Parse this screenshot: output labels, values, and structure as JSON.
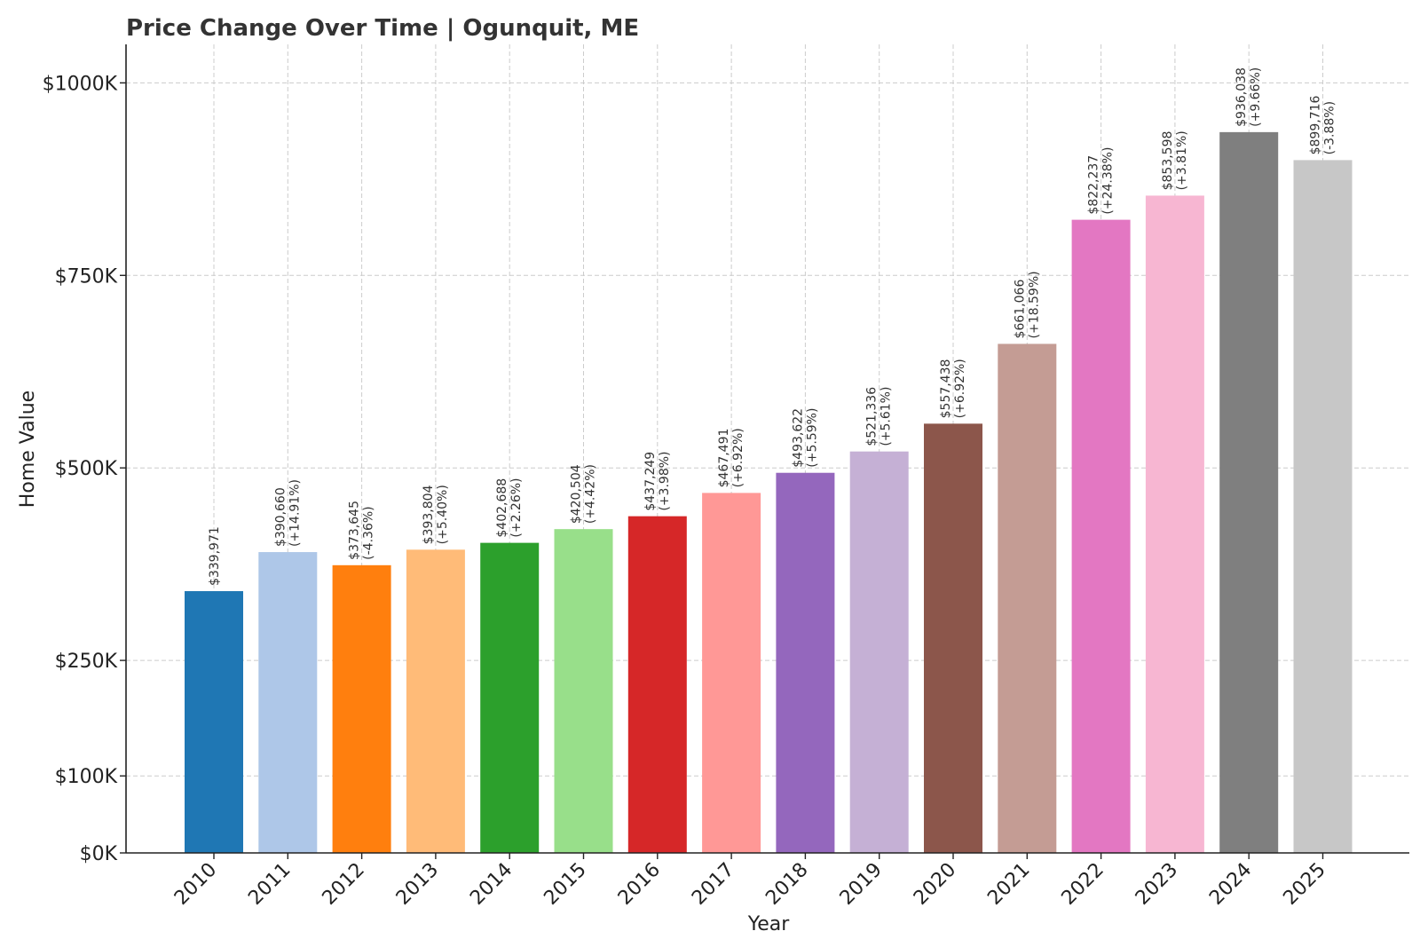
{
  "chart_data": {
    "type": "bar",
    "title": "Price Change Over Time | Ogunquit, ME",
    "xlabel": "Year",
    "ylabel": "Home Value",
    "ylim": [
      0,
      1050000
    ],
    "yticks": [
      0,
      100000,
      250000,
      500000,
      750000,
      1000000
    ],
    "ytick_labels": [
      "$0K",
      "$100K",
      "$250K",
      "$500K",
      "$750K",
      "$1000K"
    ],
    "grid": true,
    "categories": [
      "2010",
      "2011",
      "2012",
      "2013",
      "2014",
      "2015",
      "2016",
      "2017",
      "2018",
      "2019",
      "2020",
      "2021",
      "2022",
      "2023",
      "2024",
      "2025"
    ],
    "values": [
      339971,
      390660,
      373645,
      393804,
      402688,
      420504,
      437249,
      467491,
      493622,
      521336,
      557438,
      661066,
      822237,
      853598,
      936038,
      899716
    ],
    "value_labels": [
      "$339,971",
      "$390,660",
      "$373,645",
      "$393,804",
      "$402,688",
      "$420,504",
      "$437,249",
      "$467,491",
      "$493,622",
      "$521,336",
      "$557,438",
      "$661,066",
      "$822,237",
      "$853,598",
      "$936,038",
      "$899,716"
    ],
    "change_labels": [
      "",
      "(+14.91%)",
      "(-4.36%)",
      "(+5.40%)",
      "(+2.26%)",
      "(+4.42%)",
      "(+3.98%)",
      "(+6.92%)",
      "(+5.59%)",
      "(+5.61%)",
      "(+6.92%)",
      "(+18.59%)",
      "(+24.38%)",
      "(+3.81%)",
      "(+9.66%)",
      "(-3.88%)"
    ],
    "colors": [
      "#1f77b4",
      "#aec7e8",
      "#ff7f0e",
      "#ffbb78",
      "#2ca02c",
      "#98df8a",
      "#d62728",
      "#ff9896",
      "#9467bd",
      "#c5b0d5",
      "#8c564b",
      "#c49c94",
      "#e377c2",
      "#f7b6d2",
      "#7f7f7f",
      "#c7c7c7"
    ]
  }
}
